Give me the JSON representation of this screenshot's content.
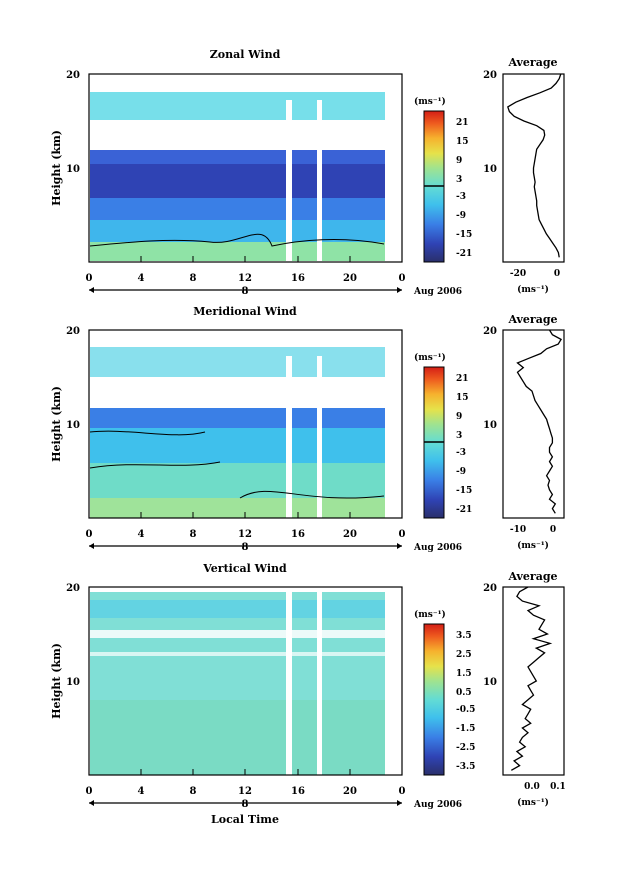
{
  "chart_data": [
    {
      "type": "heatmap",
      "title": "Zonal Wind",
      "xlabel": "",
      "ylabel": "Height (km)",
      "xlim": [
        0,
        24
      ],
      "ylim": [
        0,
        20
      ],
      "xticks": [
        "0",
        "4",
        "8",
        "12",
        "16",
        "20",
        "0"
      ],
      "yticks": [
        "10",
        "20"
      ],
      "date_marker": "8",
      "date_label": "Aug 2006",
      "colorbar": {
        "unit": "(ms⁻¹)",
        "ticks": [
          "21",
          "15",
          "9",
          "3",
          "-3",
          "-9",
          "-15",
          "-21"
        ],
        "range": [
          -24,
          24
        ],
        "contour": 0
      },
      "data_gaps_hours": [
        [
          14.9,
          15.5
        ],
        [
          17.6,
          18.0
        ]
      ],
      "profile_samples": {
        "height_km": [
          1,
          2,
          3,
          4,
          5,
          6,
          7,
          8,
          9,
          10,
          11,
          12,
          13,
          14,
          15,
          16,
          17,
          18,
          19,
          20
        ],
        "value": [
          2,
          3,
          -2,
          -10,
          -13,
          -14,
          -15,
          -14,
          -13,
          -11,
          -8,
          -4,
          -7,
          -20,
          -28,
          -30,
          -22,
          -5,
          0,
          2
        ]
      },
      "profile": {
        "title": "Average",
        "xlabel": "(ms⁻¹)",
        "xticks": [
          "-20",
          "0"
        ],
        "xlim": [
          -33,
          5
        ],
        "height_km": [
          0.5,
          1,
          1.5,
          2,
          2.5,
          3,
          3.5,
          4,
          4.5,
          5,
          5.5,
          6,
          6.5,
          7,
          7.5,
          8,
          8.5,
          9,
          9.5,
          10,
          10.5,
          11,
          11.5,
          12,
          12.5,
          13,
          13.5,
          14,
          14.5,
          15,
          15.5,
          16,
          16.5,
          17,
          17.5,
          18,
          18.5,
          19,
          19.5,
          20
        ],
        "value": [
          2,
          1.5,
          0,
          -2,
          -4,
          -6,
          -7.5,
          -9,
          -10.5,
          -11,
          -11.5,
          -12,
          -12,
          -12.5,
          -13,
          -13.5,
          -13,
          -13.5,
          -14,
          -14,
          -13.5,
          -13,
          -12.5,
          -12,
          -10,
          -8,
          -7,
          -7.5,
          -12,
          -20,
          -26,
          -29,
          -30,
          -25,
          -18,
          -10,
          -3,
          0,
          2,
          3
        ]
      }
    },
    {
      "type": "heatmap",
      "title": "Meridional Wind",
      "xlabel": "",
      "ylabel": "Height (km)",
      "xlim": [
        0,
        24
      ],
      "ylim": [
        0,
        20
      ],
      "xticks": [
        "0",
        "4",
        "8",
        "12",
        "16",
        "20",
        "0"
      ],
      "yticks": [
        "10",
        "20"
      ],
      "date_marker": "8",
      "date_label": "Aug 2006",
      "colorbar": {
        "unit": "(ms⁻¹)",
        "ticks": [
          "21",
          "15",
          "9",
          "3",
          "-3",
          "-9",
          "-15",
          "-21"
        ],
        "range": [
          -24,
          24
        ],
        "contour": 0
      },
      "data_gaps_hours": [
        [
          14.9,
          15.5
        ],
        [
          17.6,
          18.0
        ]
      ],
      "profile_samples": {
        "height_km": [
          1,
          2,
          3,
          4,
          5,
          6,
          7,
          8,
          9,
          10,
          11,
          12,
          13,
          14,
          15,
          16,
          17,
          18,
          19,
          20
        ],
        "value": [
          1,
          0,
          -1,
          -2,
          0,
          -1,
          1,
          0,
          0,
          -1,
          -2,
          -4,
          -8,
          -10,
          -12,
          -8,
          -3,
          1,
          3,
          0
        ]
      },
      "profile": {
        "title": "Average",
        "xlabel": "(ms⁻¹)",
        "xticks": [
          "-10",
          "0"
        ],
        "xlim": [
          -17,
          4
        ],
        "height_km": [
          0.5,
          1,
          1.5,
          2,
          2.5,
          3,
          3.5,
          4,
          4.5,
          5,
          5.5,
          6,
          6.5,
          7,
          7.5,
          8,
          8.5,
          9,
          9.5,
          10,
          10.5,
          11,
          11.5,
          12,
          12.5,
          13,
          13.5,
          14,
          14.5,
          15,
          15.5,
          16,
          16.5,
          17,
          17.5,
          18,
          18.5,
          19,
          19.5,
          20
        ],
        "value": [
          1,
          0,
          1,
          -1,
          0,
          -1,
          -1.5,
          -1,
          -2,
          -1,
          0,
          -1,
          0,
          -1,
          -1,
          0,
          0,
          -0.5,
          -1,
          -1.5,
          -2,
          -3,
          -4,
          -5,
          -6,
          -6.5,
          -7,
          -9,
          -10,
          -11,
          -12,
          -10,
          -12,
          -8,
          -4,
          -2,
          2,
          3,
          0,
          -1
        ]
      }
    },
    {
      "type": "heatmap",
      "title": "Vertical Wind",
      "xlabel": "Local Time",
      "ylabel": "Height (km)",
      "xlim": [
        0,
        24
      ],
      "ylim": [
        0,
        20
      ],
      "xticks": [
        "0",
        "4",
        "8",
        "12",
        "16",
        "20",
        "0"
      ],
      "yticks": [
        "10",
        "20"
      ],
      "date_marker": "8",
      "date_label": "Aug 2006",
      "colorbar": {
        "unit": "(ms⁻¹)",
        "ticks": [
          "3.5",
          "2.5",
          "1.5",
          "0.5",
          "-0.5",
          "-1.5",
          "-2.5",
          "-3.5"
        ],
        "range": [
          -4,
          4
        ]
      },
      "data_gaps_hours": [
        [
          14.9,
          15.5
        ],
        [
          17.6,
          18.0
        ]
      ],
      "profile_samples": {
        "height_km": [
          1,
          2,
          3,
          4,
          5,
          6,
          7,
          8,
          9,
          10,
          11,
          12,
          13,
          14,
          15,
          16,
          17,
          18,
          19,
          20
        ],
        "value": [
          -0.03,
          -0.05,
          -0.02,
          0.0,
          -0.03,
          -0.01,
          -0.02,
          0.0,
          0.02,
          0.01,
          0.0,
          0.03,
          0.05,
          0.06,
          0.02,
          0.04,
          0.05,
          0.03,
          0.0,
          0.02
        ]
      },
      "profile": {
        "title": "Average",
        "xlabel": "(ms⁻¹)",
        "xticks": [
          "0.0",
          "0.1"
        ],
        "xlim": [
          -0.09,
          0.13
        ],
        "height_km": [
          0.5,
          1,
          1.5,
          2,
          2.5,
          3,
          3.5,
          4,
          4.5,
          5,
          5.5,
          6,
          6.5,
          7,
          7.5,
          8,
          8.5,
          9,
          9.5,
          10,
          10.5,
          11,
          11.5,
          12,
          12.5,
          13,
          13.5,
          14,
          14.5,
          15,
          15.5,
          16,
          16.5,
          17,
          17.5,
          18,
          18.5,
          19,
          19.5,
          20
        ],
        "value": [
          -0.06,
          -0.03,
          -0.05,
          -0.02,
          -0.04,
          -0.01,
          -0.03,
          -0.02,
          0.0,
          -0.02,
          0.01,
          -0.01,
          0.0,
          0.01,
          -0.02,
          0.0,
          0.02,
          0.01,
          0.0,
          0.03,
          0.02,
          0.01,
          0.0,
          0.02,
          0.04,
          0.06,
          0.03,
          0.08,
          0.02,
          0.07,
          0.04,
          0.05,
          0.06,
          0.02,
          0.0,
          0.04,
          -0.02,
          -0.04,
          -0.03,
          0.0
        ]
      }
    }
  ]
}
